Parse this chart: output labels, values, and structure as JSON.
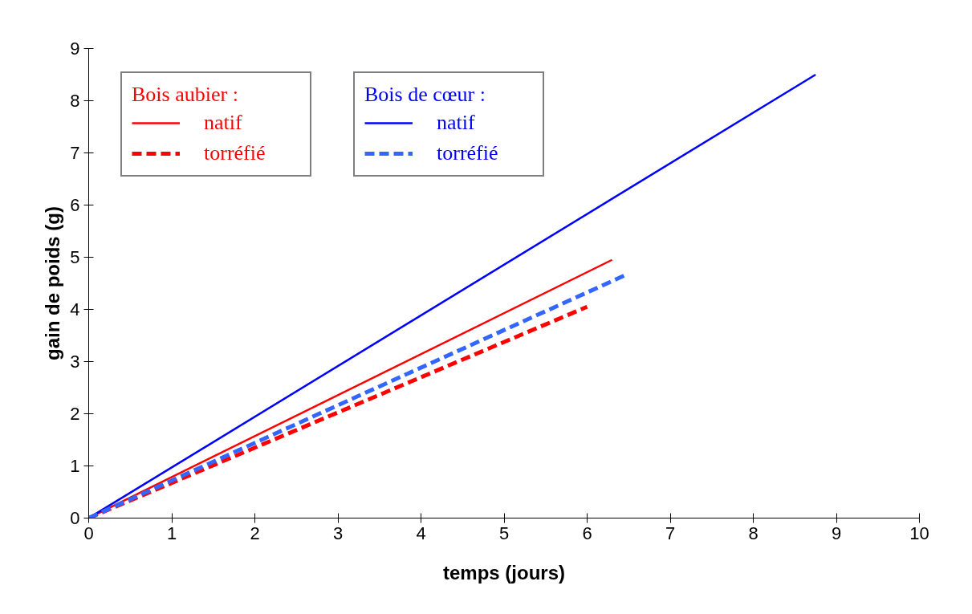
{
  "chart_data": {
    "type": "line",
    "xlabel": "temps (jours)",
    "ylabel": "gain de poids (g)",
    "annotations": [
      "Bois aubier :",
      "Bois de cœur :"
    ],
    "series": [
      {
        "name": "natif",
        "color": "#ff0000",
        "line_style": "solid",
        "x": [
          0,
          6.3
        ],
        "values": [
          0,
          4.95
        ]
      },
      {
        "name": "torréfié",
        "color": "#ff0000",
        "line_style": "dashed",
        "x": [
          0,
          6.0
        ],
        "values": [
          0,
          4.05
        ]
      },
      {
        "name": "natif",
        "color": "#0000ff",
        "line_style": "solid",
        "x": [
          0,
          8.75
        ],
        "values": [
          0,
          8.5
        ]
      },
      {
        "name": "torréfié",
        "color": "#3366ff",
        "line_style": "dashed",
        "x": [
          0,
          6.45
        ],
        "values": [
          0,
          4.65
        ]
      }
    ],
    "xlim": [
      0,
      10
    ],
    "ylim": [
      0,
      9
    ],
    "xticks": [
      0,
      1,
      2,
      3,
      4,
      5,
      6,
      7,
      8,
      9,
      10
    ],
    "yticks": [
      0,
      1,
      2,
      3,
      4,
      5,
      6,
      7,
      8,
      9
    ],
    "grid": false,
    "legend": "top left"
  }
}
